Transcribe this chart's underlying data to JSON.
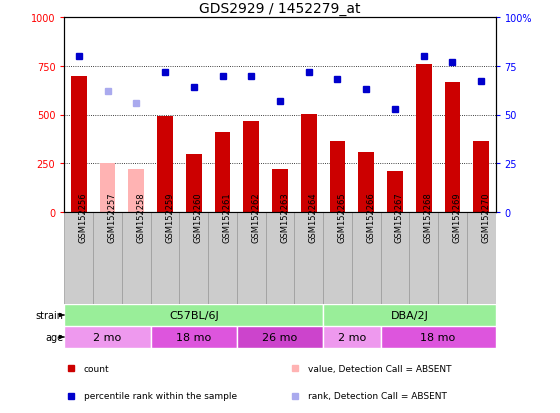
{
  "title": "GDS2929 / 1452279_at",
  "samples": [
    "GSM152256",
    "GSM152257",
    "GSM152258",
    "GSM152259",
    "GSM152260",
    "GSM152261",
    "GSM152262",
    "GSM152263",
    "GSM152264",
    "GSM152265",
    "GSM152266",
    "GSM152267",
    "GSM152268",
    "GSM152269",
    "GSM152270"
  ],
  "counts": [
    700,
    250,
    220,
    490,
    295,
    410,
    465,
    220,
    505,
    365,
    310,
    210,
    760,
    665,
    365
  ],
  "absent": [
    false,
    true,
    true,
    false,
    false,
    false,
    false,
    false,
    false,
    false,
    false,
    false,
    false,
    false,
    false
  ],
  "percentile_ranks": [
    80,
    62,
    56,
    72,
    64,
    70,
    70,
    57,
    72,
    68,
    63,
    53,
    80,
    77,
    67
  ],
  "rank_absent": [
    false,
    true,
    true,
    false,
    false,
    false,
    false,
    false,
    false,
    false,
    false,
    false,
    false,
    false,
    false
  ],
  "ylim_left": [
    0,
    1000
  ],
  "ylim_right": [
    0,
    100
  ],
  "yticks_left": [
    0,
    250,
    500,
    750,
    1000
  ],
  "yticks_right": [
    0,
    25,
    50,
    75,
    100
  ],
  "bar_color_present": "#cc0000",
  "bar_color_absent": "#ffb3b3",
  "dot_color_present": "#0000cc",
  "dot_color_absent": "#aaaaee",
  "strain_labels": [
    {
      "label": "C57BL/6J",
      "start": 0,
      "end": 9
    },
    {
      "label": "DBA/2J",
      "start": 9,
      "end": 15
    }
  ],
  "age_labels": [
    {
      "label": "2 mo",
      "start": 0,
      "end": 3
    },
    {
      "label": "18 mo",
      "start": 3,
      "end": 6
    },
    {
      "label": "26 mo",
      "start": 6,
      "end": 9
    },
    {
      "label": "2 mo",
      "start": 9,
      "end": 11
    },
    {
      "label": "18 mo",
      "start": 11,
      "end": 15
    }
  ],
  "strain_color": "#99ee99",
  "age_colors": [
    "#ee99ee",
    "#dd55dd",
    "#cc44cc",
    "#ee99ee",
    "#dd55dd"
  ],
  "cell_color": "#cccccc",
  "cell_border": "#999999",
  "legend_items": [
    {
      "label": "count",
      "color": "#cc0000"
    },
    {
      "label": "percentile rank within the sample",
      "color": "#0000cc"
    },
    {
      "label": "value, Detection Call = ABSENT",
      "color": "#ffb3b3"
    },
    {
      "label": "rank, Detection Call = ABSENT",
      "color": "#aaaaee"
    }
  ]
}
